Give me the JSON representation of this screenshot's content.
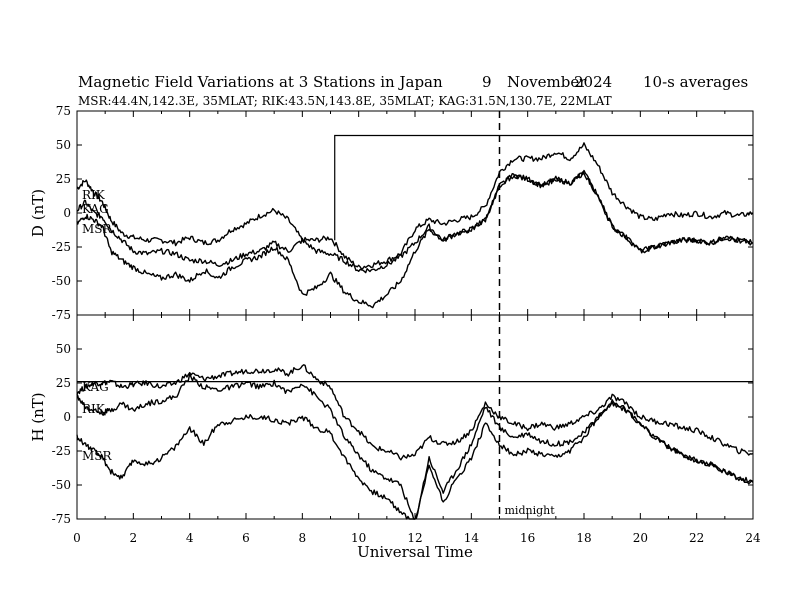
{
  "header": {
    "title": "Magnetic Field Variations at 3 Stations in Japan",
    "date_day": "9",
    "date_month": "November",
    "date_year": "2024",
    "averaging": "10-s averages",
    "stations_line": "MSR:44.4N,142.3E, 35MLAT;  RIK:43.5N,143.8E, 35MLAT;  KAG:31.5N,130.7E, 22MLAT"
  },
  "chart_data": [
    {
      "type": "line",
      "panel": "D",
      "ylabel": "D (nT)",
      "ylim": [
        -75,
        75
      ],
      "yticks": [
        "75",
        "50",
        "25",
        "0",
        "-25",
        "-50",
        "-75"
      ],
      "xlim": [
        0,
        24
      ],
      "series": [
        {
          "name": "RIK",
          "x": [
            0,
            0.3,
            0.6,
            0.9,
            1.2,
            1.6,
            2,
            2.5,
            3,
            3.5,
            4,
            4.5,
            5,
            5.5,
            6,
            6.5,
            7,
            7.5,
            8,
            8.5,
            9,
            9.5,
            10,
            10.5,
            11,
            11.5,
            12,
            12.5,
            13,
            13.5,
            14,
            14.5,
            15,
            15.5,
            16,
            16.5,
            17,
            17.5,
            18,
            18.5,
            19,
            19.5,
            20,
            20.5,
            21,
            21.5,
            22,
            22.5,
            23,
            23.5,
            24
          ],
          "y": [
            18,
            24,
            15,
            8,
            -5,
            -15,
            -18,
            -20,
            -20,
            -22,
            -18,
            -22,
            -20,
            -12,
            -8,
            -2,
            2,
            -5,
            -20,
            -20,
            -18,
            -32,
            -40,
            -38,
            -35,
            -30,
            -12,
            -5,
            -8,
            -5,
            -3,
            5,
            30,
            40,
            40,
            40,
            45,
            40,
            50,
            35,
            15,
            5,
            -3,
            -5,
            0,
            -2,
            0,
            -3,
            0,
            -2,
            0
          ]
        },
        {
          "name": "KAG",
          "x": [
            0,
            0.3,
            0.6,
            0.9,
            1.2,
            1.6,
            2,
            2.5,
            3,
            3.5,
            4,
            4.5,
            5,
            5.5,
            6,
            6.5,
            7,
            7.5,
            8,
            8.5,
            9,
            9.5,
            10,
            10.5,
            11,
            11.5,
            12,
            12.5,
            13,
            13.5,
            14,
            14.5,
            15,
            15.5,
            16,
            16.5,
            17,
            17.5,
            18,
            18.5,
            19,
            19.5,
            20,
            20.5,
            21,
            21.5,
            22,
            22.5,
            23,
            23.5,
            24
          ],
          "y": [
            2,
            8,
            0,
            -3,
            -12,
            -20,
            -28,
            -30,
            -28,
            -30,
            -35,
            -35,
            -38,
            -35,
            -30,
            -28,
            -22,
            -28,
            -20,
            -28,
            -30,
            -35,
            -42,
            -42,
            -38,
            -32,
            -22,
            -10,
            -20,
            -15,
            -12,
            -5,
            20,
            28,
            25,
            20,
            25,
            22,
            30,
            12,
            -10,
            -18,
            -28,
            -25,
            -22,
            -20,
            -20,
            -22,
            -18,
            -20,
            -22
          ]
        },
        {
          "name": "MSR",
          "x": [
            0,
            0.3,
            0.6,
            0.9,
            1.2,
            1.6,
            2,
            2.5,
            3,
            3.5,
            4,
            4.5,
            5,
            5.5,
            6,
            6.5,
            7,
            7.5,
            8,
            8.5,
            9,
            9.5,
            10,
            10.5,
            11,
            11.5,
            12,
            12.5,
            13,
            13.5,
            14,
            14.5,
            15,
            15.5,
            16,
            16.5,
            17,
            17.5,
            18,
            18.5,
            19,
            19.5,
            20,
            20.5,
            21,
            21.5,
            22,
            22.5,
            23,
            23.5,
            24
          ],
          "y": [
            -8,
            -2,
            -5,
            -10,
            -28,
            -35,
            -40,
            -45,
            -48,
            -45,
            -50,
            -42,
            -48,
            -40,
            -35,
            -32,
            -25,
            -35,
            -60,
            -55,
            -45,
            -58,
            -65,
            -68,
            -60,
            -50,
            -28,
            -12,
            -20,
            -15,
            -12,
            -5,
            20,
            28,
            25,
            20,
            25,
            22,
            30,
            12,
            -10,
            -18,
            -28,
            -25,
            -22,
            -20,
            -20,
            -22,
            -18,
            -20,
            -22
          ]
        }
      ],
      "step_line": {
        "baseline": -20,
        "level": 57,
        "start": 9.15,
        "end": 24
      }
    },
    {
      "type": "line",
      "panel": "H",
      "ylabel": "H (nT)",
      "xlabel": "Universal Time",
      "ylim": [
        -75,
        75
      ],
      "yticks": [
        "50",
        "25",
        "0",
        "-25",
        "-50",
        "-75"
      ],
      "xlim": [
        0,
        24
      ],
      "xticks": [
        "0",
        "2",
        "4",
        "6",
        "8",
        "10",
        "12",
        "14",
        "16",
        "18",
        "20",
        "22",
        "24"
      ],
      "series": [
        {
          "name": "KAG",
          "x": [
            0,
            0.3,
            0.6,
            0.9,
            1.2,
            1.6,
            2,
            2.5,
            3,
            3.5,
            4,
            4.5,
            5,
            5.5,
            6,
            6.5,
            7,
            7.5,
            8,
            8.5,
            9,
            9.5,
            10,
            10.5,
            11,
            11.5,
            12,
            12.5,
            13,
            13.5,
            14,
            14.5,
            15,
            15.5,
            16,
            16.5,
            17,
            17.5,
            18,
            18.5,
            19,
            19.5,
            20,
            20.5,
            21,
            21.5,
            22,
            22.5,
            23,
            23.5,
            24
          ],
          "y": [
            18,
            22,
            25,
            25,
            26,
            22,
            24,
            25,
            22,
            25,
            32,
            28,
            30,
            32,
            34,
            34,
            35,
            32,
            38,
            28,
            22,
            0,
            -10,
            -22,
            -25,
            -30,
            -28,
            -15,
            -20,
            -18,
            -10,
            10,
            0,
            -5,
            -8,
            -5,
            -8,
            -5,
            0,
            5,
            15,
            10,
            0,
            -3,
            -5,
            -8,
            -10,
            -15,
            -20,
            -25,
            -27
          ]
        },
        {
          "name": "RIK",
          "x": [
            0,
            0.3,
            0.6,
            0.9,
            1.2,
            1.6,
            2,
            2.5,
            3,
            3.5,
            4,
            4.5,
            5,
            5.5,
            6,
            6.5,
            7,
            7.5,
            8,
            8.5,
            9,
            9.5,
            10,
            10.5,
            11,
            11.5,
            12,
            12.5,
            13,
            13.5,
            14,
            14.5,
            15,
            15.5,
            16,
            16.5,
            17,
            17.5,
            18,
            18.5,
            19,
            19.5,
            20,
            20.5,
            21,
            21.5,
            22,
            22.5,
            23,
            23.5,
            24
          ],
          "y": [
            15,
            8,
            5,
            3,
            5,
            10,
            5,
            10,
            12,
            15,
            30,
            22,
            20,
            22,
            25,
            22,
            25,
            18,
            25,
            15,
            5,
            -15,
            -28,
            -40,
            -45,
            -50,
            -78,
            -30,
            -55,
            -38,
            -20,
            8,
            -8,
            -15,
            -12,
            -18,
            -20,
            -18,
            -12,
            0,
            10,
            5,
            -5,
            -15,
            -22,
            -28,
            -32,
            -35,
            -40,
            -45,
            -48
          ]
        },
        {
          "name": "MSR",
          "x": [
            0,
            0.3,
            0.6,
            0.9,
            1.2,
            1.6,
            2,
            2.5,
            3,
            3.5,
            4,
            4.5,
            5,
            5.5,
            6,
            6.5,
            7,
            7.5,
            8,
            8.5,
            9,
            9.5,
            10,
            10.5,
            11,
            11.5,
            12,
            12.5,
            13,
            13.5,
            14,
            14.5,
            15,
            15.5,
            16,
            16.5,
            17,
            17.5,
            18,
            18.5,
            19,
            19.5,
            20,
            20.5,
            21,
            21.5,
            22,
            22.5,
            23,
            23.5,
            24
          ],
          "y": [
            -15,
            -20,
            -25,
            -30,
            -40,
            -45,
            -32,
            -35,
            -30,
            -22,
            -8,
            -20,
            -5,
            -3,
            0,
            0,
            -2,
            -5,
            0,
            -8,
            -12,
            -30,
            -45,
            -55,
            -60,
            -70,
            -78,
            -35,
            -62,
            -45,
            -30,
            -5,
            -20,
            -28,
            -25,
            -28,
            -30,
            -25,
            -15,
            0,
            12,
            5,
            -5,
            -15,
            -22,
            -28,
            -32,
            -35,
            -40,
            -45,
            -48
          ]
        }
      ],
      "step_line": {
        "baseline": 15,
        "level": 26,
        "start": 0,
        "end": 24
      }
    }
  ],
  "midnight_marker": {
    "x": 15,
    "label": "midnight"
  }
}
